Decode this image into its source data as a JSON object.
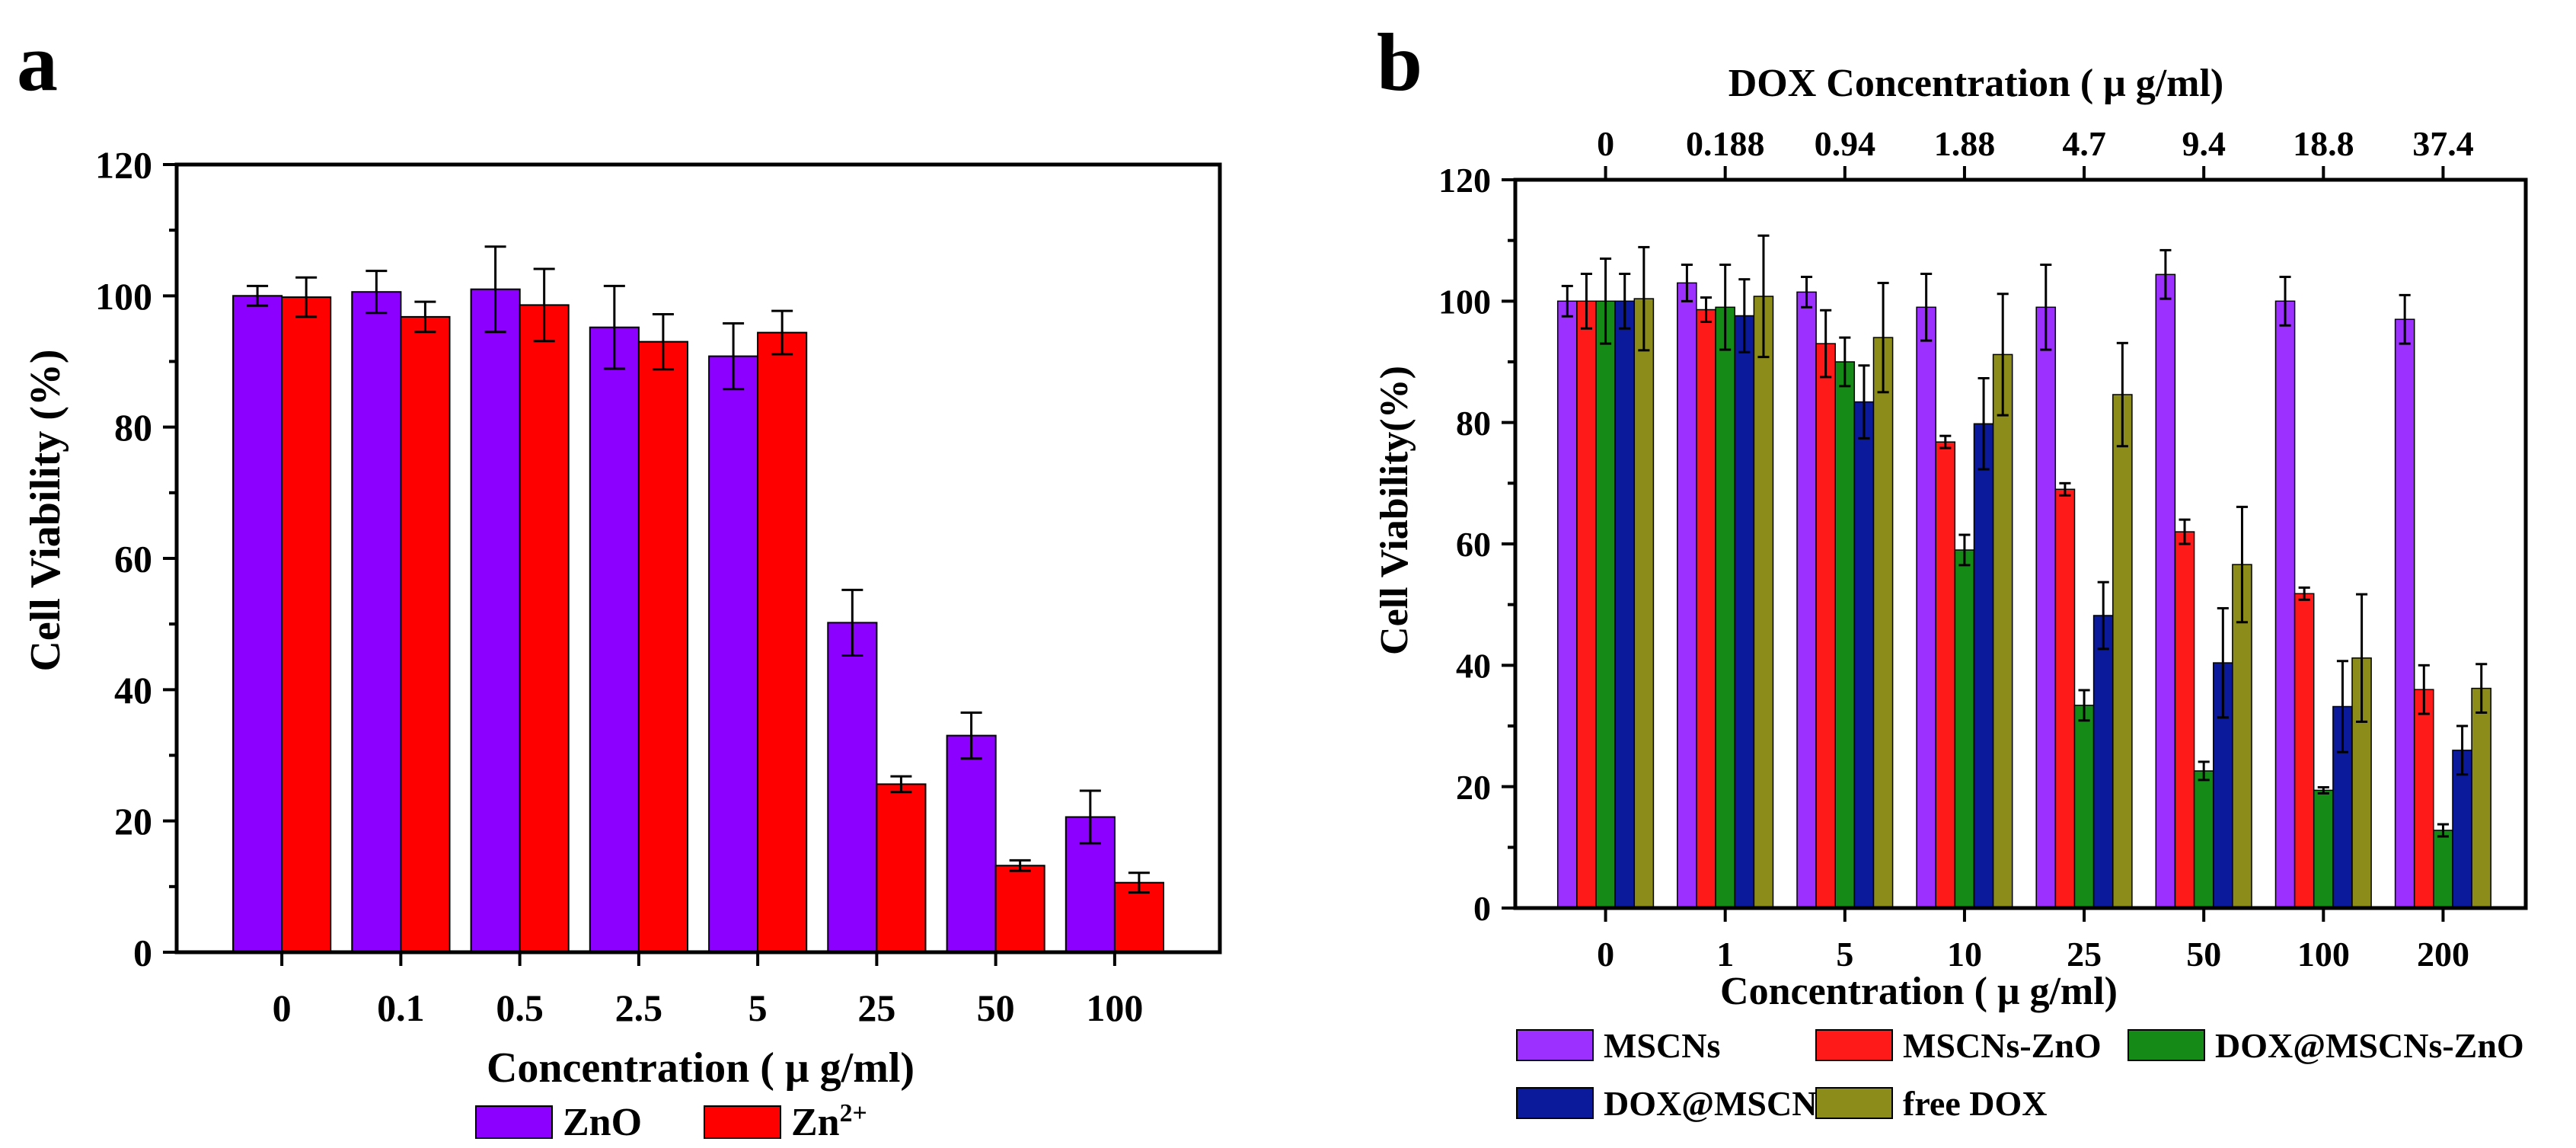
{
  "chart_data": [
    {
      "panel_label": "a",
      "type": "bar",
      "title": "",
      "xlabel": "Concentration ( μ g/ml)",
      "ylabel": "Cell Viability (%)",
      "ylim": [
        0,
        120
      ],
      "yticks": [
        "0",
        "20",
        "40",
        "60",
        "80",
        "100",
        "120"
      ],
      "categories": [
        "0",
        "0.1",
        "0.5",
        "2.5",
        "5",
        "25",
        "50",
        "100"
      ],
      "series": [
        {
          "name": "ZnO",
          "legend_label": "ZnO",
          "color": "#8B00FF",
          "values": [
            100,
            100.6,
            101,
            95.2,
            90.8,
            50.2,
            33,
            20.6
          ],
          "errors": [
            1.5,
            3.2,
            6.5,
            6.3,
            5,
            5,
            3.5,
            4
          ]
        },
        {
          "name": "Zn2+",
          "legend_label": "Zn",
          "legend_sup": "2+",
          "color": "#FF0000",
          "values": [
            99.8,
            96.8,
            98.6,
            93,
            94.4,
            25.6,
            13.2,
            10.6
          ],
          "errors": [
            3,
            2.3,
            5.5,
            4.2,
            3.3,
            1.2,
            0.8,
            1.5
          ]
        }
      ],
      "legend_position": "bottom"
    },
    {
      "panel_label": "b",
      "type": "bar",
      "title": "",
      "xlabel": "Concentration ( μ g/ml)",
      "ylabel": "Cell Viability(%)",
      "top_axis_label": "DOX Concentration ( μ g/ml)",
      "top_categories": [
        "0",
        "0.188",
        "0.94",
        "1.88",
        "4.7",
        "9.4",
        "18.8",
        "37.4"
      ],
      "ylim": [
        0,
        120
      ],
      "yticks": [
        "0",
        "20",
        "40",
        "60",
        "80",
        "100",
        "120"
      ],
      "categories": [
        "0",
        "1",
        "5",
        "10",
        "25",
        "50",
        "100",
        "200"
      ],
      "series": [
        {
          "name": "MSCNs",
          "legend_label": "MSCNs",
          "color": "#9B30FF",
          "values": [
            100,
            103,
            101.5,
            99,
            99,
            104.4,
            100,
            97
          ],
          "errors": [
            2.5,
            3,
            2.5,
            5.5,
            7,
            4,
            4,
            4
          ]
        },
        {
          "name": "MSCNs-ZnO",
          "legend_label": "MSCNs-ZnO",
          "color": "#FF1A1A",
          "values": [
            100,
            98.6,
            93,
            76.8,
            69,
            62,
            51.8,
            36
          ],
          "errors": [
            4.5,
            2,
            5.5,
            1,
            1,
            2,
            1,
            4
          ]
        },
        {
          "name": "DOX@MSCNs-ZnO",
          "legend_label": "DOX@MSCNs-ZnO",
          "color": "#168A16",
          "values": [
            100,
            99,
            90,
            59,
            33.4,
            22.6,
            19.4,
            12.8
          ],
          "errors": [
            7,
            7,
            4,
            2.5,
            2.5,
            1.5,
            0.5,
            1
          ]
        },
        {
          "name": "DOX@MSCNs",
          "legend_label": "DOX@MSCNs",
          "color": "#0A1A9A",
          "values": [
            100,
            97.6,
            83.4,
            79.8,
            48.2,
            40.4,
            33.2,
            26
          ],
          "errors": [
            4.5,
            6,
            6,
            7.5,
            5.5,
            9,
            7.5,
            4
          ]
        },
        {
          "name": "free DOX",
          "legend_label": "free DOX",
          "color": "#8C8C1A",
          "values": [
            100.4,
            100.8,
            94,
            91.2,
            84.6,
            56.6,
            41.2,
            36.2
          ],
          "errors": [
            8.5,
            10,
            9,
            10,
            8.5,
            9.5,
            10.5,
            4
          ]
        }
      ],
      "legend_position": "bottom"
    }
  ]
}
